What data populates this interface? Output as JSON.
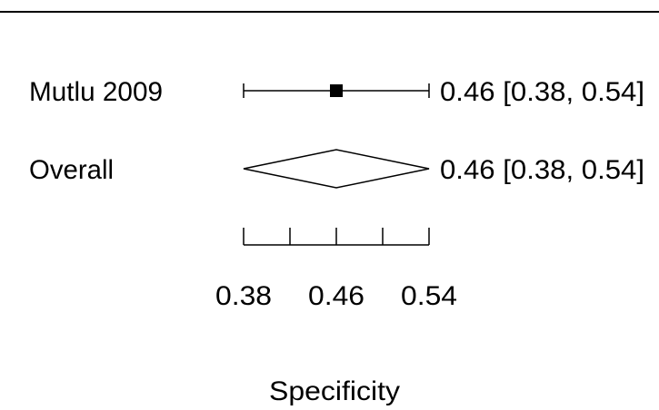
{
  "chart_data": {
    "type": "forest",
    "xlabel": "Specificity",
    "x_ticks": [
      0.38,
      0.42,
      0.46,
      0.5,
      0.54
    ],
    "x_tick_labels": [
      "0.38",
      "0.46",
      "0.54"
    ],
    "xlim": [
      0.38,
      0.54
    ],
    "studies": [
      {
        "label": "Mutlu 2009",
        "estimate": 0.46,
        "lower": 0.38,
        "upper": 0.54,
        "ci_text": "0.46 [0.38, 0.54]"
      }
    ],
    "overall": {
      "label": "Overall",
      "estimate": 0.46,
      "lower": 0.38,
      "upper": 0.54,
      "ci_text": "0.46 [0.38, 0.54]"
    },
    "grid": false,
    "legend": "none"
  }
}
